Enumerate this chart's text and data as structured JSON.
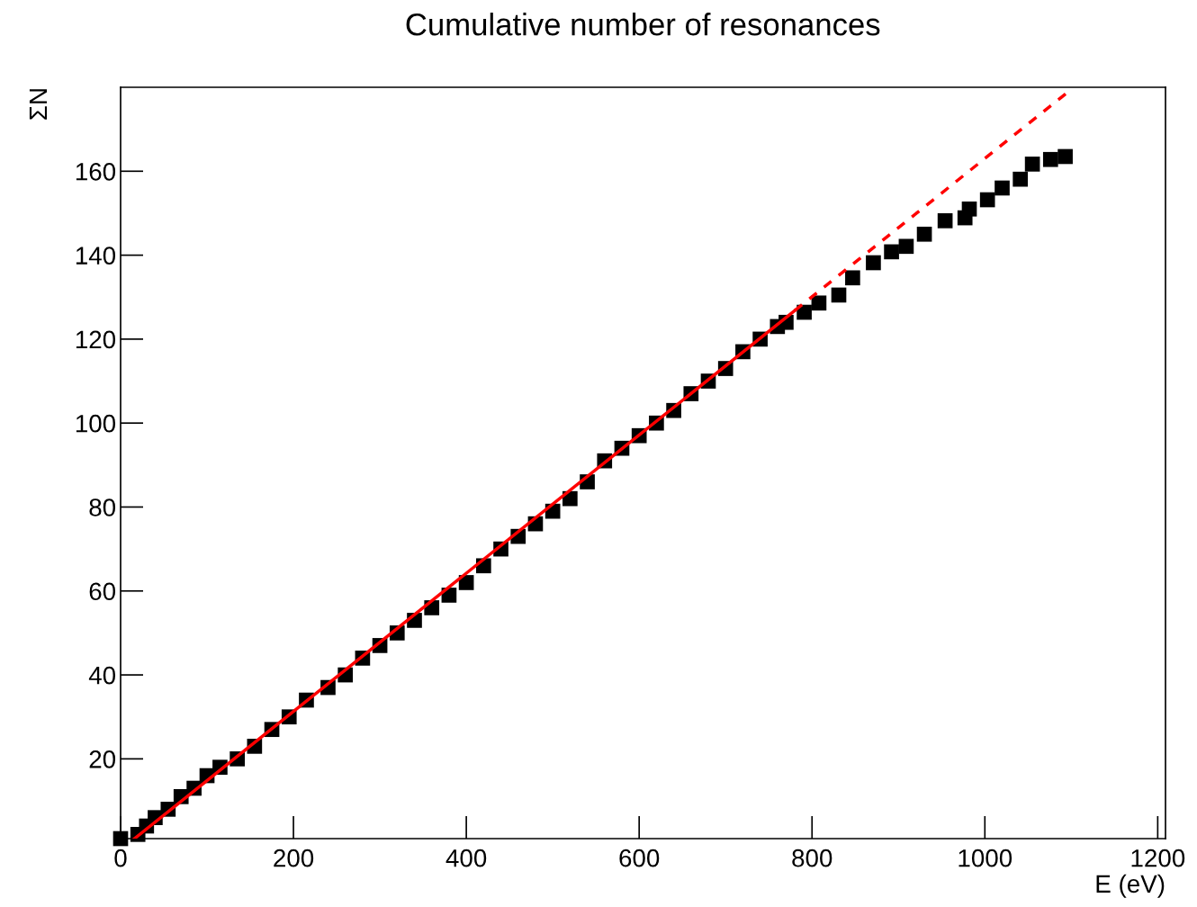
{
  "chart_data": {
    "type": "scatter",
    "title": "Cumulative number of resonances",
    "xlabel": "E (eV)",
    "ylabel": "ΣN",
    "xlim": [
      0,
      1209
    ],
    "ylim": [
      1,
      180
    ],
    "xticks": [
      0,
      200,
      400,
      600,
      800,
      1000,
      1200
    ],
    "yticks": [
      20,
      40,
      60,
      80,
      100,
      120,
      140,
      160
    ],
    "grid": false,
    "legend": false,
    "series": [
      {
        "marker": "square",
        "color": "#000000",
        "x": [
          0,
          20,
          30,
          40,
          55,
          70,
          85,
          100,
          115,
          135,
          155,
          175,
          195,
          215,
          240,
          260,
          280,
          300,
          320,
          340,
          360,
          380,
          400,
          420,
          440,
          460,
          480,
          500,
          520,
          540,
          560,
          580,
          600,
          620,
          640,
          660,
          680,
          700,
          720,
          740,
          760,
          770,
          791,
          808,
          831,
          847,
          871,
          892,
          909,
          930,
          954,
          977,
          982,
          1003,
          1020,
          1041,
          1055,
          1076,
          1093
        ],
        "values": [
          1,
          2,
          4,
          6,
          8,
          11,
          13,
          16,
          18,
          20,
          23,
          27,
          30,
          34,
          37,
          40,
          44,
          47,
          50,
          53,
          56,
          59,
          62,
          66,
          70,
          73,
          76,
          79,
          82,
          86,
          91,
          94,
          97,
          100,
          103,
          107,
          110,
          113,
          117,
          120,
          123,
          124,
          126.4,
          128.6,
          130.5,
          134.6,
          138.2,
          140.8,
          142.1,
          145,
          148.2,
          148.9,
          151,
          153.2,
          156,
          158.1,
          161.7,
          162.8,
          163.5
        ]
      },
      {
        "type": "line",
        "color": "#ff0000",
        "line_style": "solid",
        "x": [
          16,
          780
        ],
        "values": [
          1,
          126.8
        ]
      },
      {
        "type": "line",
        "color": "#ff0000",
        "line_style": "dashed",
        "x": [
          780,
          1100
        ],
        "values": [
          126.8,
          179.5
        ]
      }
    ]
  }
}
